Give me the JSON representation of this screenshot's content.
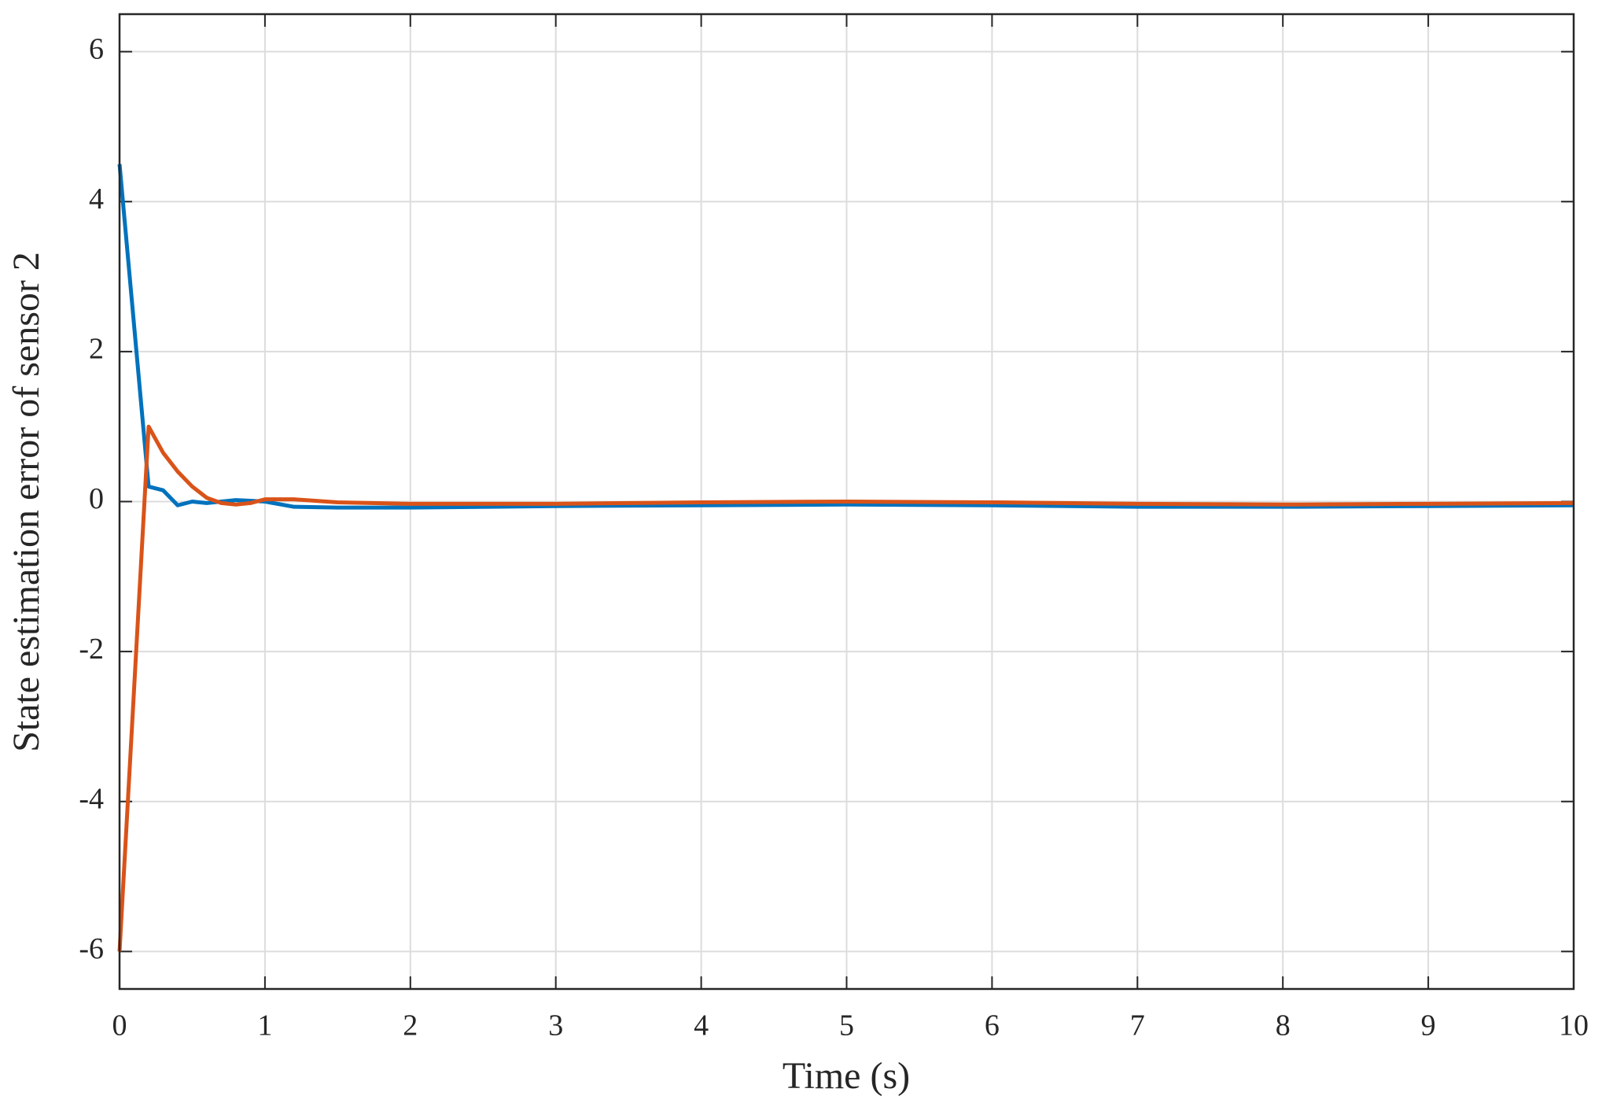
{
  "chart_data": {
    "type": "line",
    "xlabel": "Time (s)",
    "ylabel": "State estimation error of sensor 2",
    "x": [
      0,
      0.2,
      0.3,
      0.4,
      0.5,
      0.6,
      0.7,
      0.8,
      0.9,
      1,
      1.2,
      1.5,
      2,
      3,
      4,
      5,
      6,
      7,
      8,
      9,
      10
    ],
    "series": [
      {
        "color": "#0072bd",
        "values": [
          4.5,
          0.2,
          0.15,
          -0.05,
          0,
          -0.02,
          0,
          0.02,
          0.01,
          0,
          -0.07,
          -0.08,
          -0.08,
          -0.06,
          -0.05,
          -0.04,
          -0.05,
          -0.07,
          -0.07,
          -0.06,
          -0.05
        ]
      },
      {
        "color": "#d95319",
        "values": [
          -6,
          1.0,
          0.65,
          0.4,
          0.2,
          0.05,
          -0.02,
          -0.04,
          -0.02,
          0.03,
          0.03,
          -0.01,
          -0.03,
          -0.03,
          -0.01,
          0,
          -0.01,
          -0.03,
          -0.04,
          -0.03,
          -0.02
        ]
      }
    ],
    "xlim": [
      0,
      10
    ],
    "xticks": [
      0,
      1,
      2,
      3,
      4,
      5,
      6,
      7,
      8,
      9,
      10
    ],
    "ylim": [
      -6.5,
      6.5
    ],
    "yticks": [
      -6,
      -4,
      -2,
      0,
      2,
      4,
      6
    ],
    "grid": true
  }
}
